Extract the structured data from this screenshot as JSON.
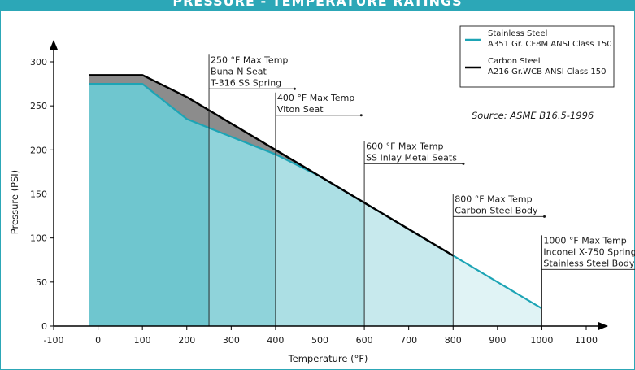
{
  "page": {
    "title": "PRESSURE - TEMPERATURE RATINGS"
  },
  "colors": {
    "accent": "#2ca7b7",
    "stainless_line": "#1da4b5",
    "carbon_line": "#000000",
    "gap_fill": "#8c8c8c"
  },
  "chart_data": {
    "type": "line",
    "xlabel": "Temperature (°F)",
    "ylabel": "Pressure (PSI)",
    "xlim": [
      -100,
      1100
    ],
    "ylim": [
      0,
      300
    ],
    "x_ticks": [
      -100,
      0,
      100,
      200,
      300,
      400,
      500,
      600,
      700,
      800,
      900,
      1000,
      1100
    ],
    "y_ticks": [
      0,
      50,
      100,
      150,
      200,
      250,
      300
    ],
    "grid": false,
    "legend_position": "top-right",
    "series": [
      {
        "name": "Stainless Steel",
        "legend_sub": "A351 Gr. CF8M ANSI Class 150",
        "color": "#1da4b5",
        "x": [
          -20,
          100,
          200,
          300,
          400,
          500,
          600,
          700,
          800,
          900,
          1000
        ],
        "y": [
          275,
          275,
          235,
          215,
          195,
          170,
          140,
          110,
          80,
          50,
          20
        ]
      },
      {
        "name": "Carbon Steel",
        "legend_sub": "A216 Gr.WCB ANSI Class 150",
        "color": "#000000",
        "x": [
          -20,
          100,
          200,
          300,
          400,
          500,
          600,
          700,
          800
        ],
        "y": [
          285,
          285,
          260,
          230,
          200,
          170,
          140,
          110,
          80
        ]
      }
    ],
    "shaded_bands": [
      {
        "x_start": -20,
        "x_end": 250,
        "color": "#6fc6cf"
      },
      {
        "x_start": 250,
        "x_end": 400,
        "color": "#8fd3da"
      },
      {
        "x_start": 400,
        "x_end": 600,
        "color": "#acdfe4"
      },
      {
        "x_start": 600,
        "x_end": 800,
        "color": "#c7e9ed"
      },
      {
        "x_start": 800,
        "x_end": 1000,
        "color": "#e0f3f5"
      }
    ],
    "annotations": [
      {
        "x": 250,
        "lines": [
          "250 °F Max Temp",
          "Buna-N Seat",
          "T-316 SS Spring"
        ]
      },
      {
        "x": 400,
        "lines": [
          "400 °F Max Temp",
          "Viton Seat"
        ]
      },
      {
        "x": 600,
        "lines": [
          "600 °F Max Temp",
          "SS Inlay Metal Seats"
        ]
      },
      {
        "x": 800,
        "lines": [
          "800 °F Max Temp",
          "Carbon Steel Body"
        ]
      },
      {
        "x": 1000,
        "lines": [
          "1000 °F Max Temp",
          "Inconel X-750 Spring",
          "Stainless Steel Body"
        ]
      }
    ],
    "source": "Source:  ASME B16.5-1996"
  }
}
